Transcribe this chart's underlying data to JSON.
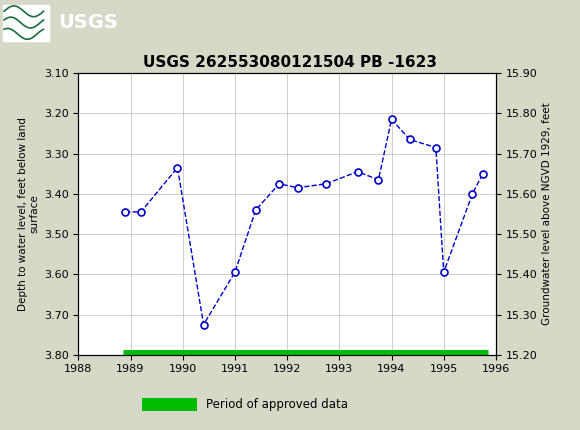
{
  "title": "USGS 262553080121504 PB -1623",
  "ylabel_left": "Depth to water level, feet below land\nsurface",
  "ylabel_right": "Groundwater level above NGVD 1929, feet",
  "xlim": [
    1988,
    1996
  ],
  "ylim_left": [
    3.1,
    3.8
  ],
  "ylim_right": [
    15.2,
    15.9
  ],
  "xticks": [
    1988,
    1989,
    1990,
    1991,
    1992,
    1993,
    1994,
    1995,
    1996
  ],
  "yticks_left": [
    3.1,
    3.2,
    3.3,
    3.4,
    3.5,
    3.6,
    3.7,
    3.8
  ],
  "yticks_right": [
    15.2,
    15.3,
    15.4,
    15.5,
    15.6,
    15.7,
    15.8,
    15.9
  ],
  "x_data": [
    1988.9,
    1989.2,
    1989.9,
    1990.4,
    1991.0,
    1991.4,
    1991.85,
    1992.2,
    1992.75,
    1993.35,
    1993.75,
    1994.0,
    1994.35,
    1994.85,
    1995.0,
    1995.55,
    1995.75
  ],
  "y_data": [
    3.445,
    3.445,
    3.335,
    3.725,
    3.595,
    3.44,
    3.375,
    3.385,
    3.375,
    3.345,
    3.365,
    3.215,
    3.265,
    3.285,
    3.595,
    3.4,
    3.35
  ],
  "line_color": "#0000cc",
  "marker_color": "#0000cc",
  "marker_face": "white",
  "approved_bar_color": "#00bb00",
  "approved_bar_x_start": 1988.85,
  "approved_bar_x_end": 1995.85,
  "approved_bar_y": 3.795,
  "header_color": "#1a6e3c",
  "background_color": "#d8d8c8",
  "plot_bg_color": "#ffffff",
  "grid_color": "#bbbbbb",
  "title_fontsize": 11,
  "tick_fontsize": 8,
  "label_fontsize": 7.5
}
